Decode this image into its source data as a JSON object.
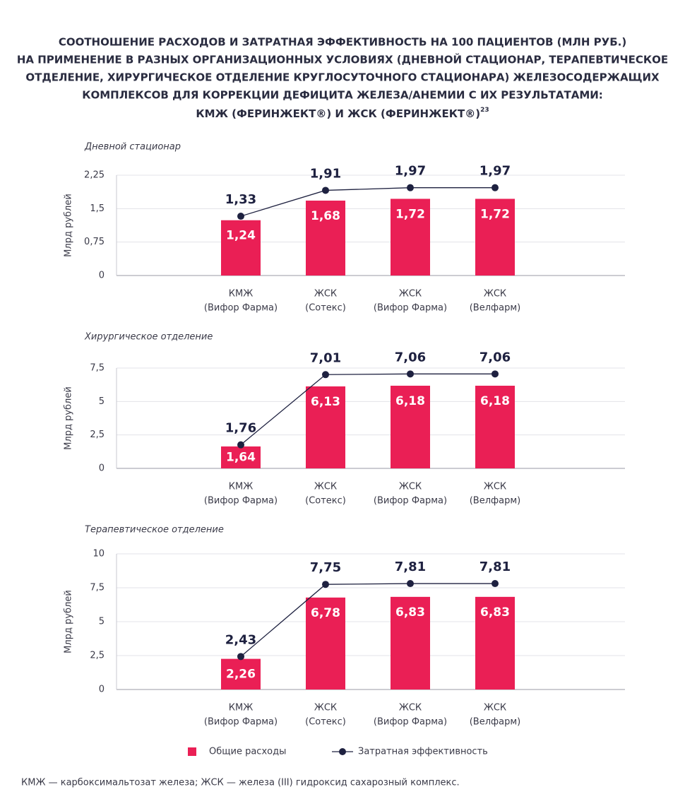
{
  "title": [
    "СООТНОШЕНИЕ РАСХОДОВ И ЗАТРАТНАЯ ЭФФЕКТИВНОСТЬ НА 100 ПАЦИЕНТОВ (МЛН РУБ.)",
    "НА ПРИМЕНЕНИЕ В РАЗНЫХ ОРГАНИЗАЦИОННЫХ УСЛОВИЯХ (ДНЕВНОЙ СТАЦИОНАР, ТЕРАПЕВТИЧЕСКОЕ",
    "ОТДЕЛЕНИЕ, ХИРУРГИЧЕСКОЕ ОТДЕЛЕНИЕ КРУГЛОСУТОЧНОГО СТАЦИОНАРА) ЖЕЛЕЗОСОДЕРЖАЩИХ",
    "КОМПЛЕКСОВ ДЛЯ КОРРЕКЦИИ ДЕФИЦИТА ЖЕЛЕЗА/АНЕМИИ С ИХ РЕЗУЛЬТАТАМИ:",
    "КМЖ (ФЕРИНЖЕКТ®) И ЖСК (ФЕРИНЖЕКТ®)"
  ],
  "title_ref": "23",
  "legend": [
    {
      "name": "Общие расходы",
      "color": "#ea1f55",
      "type": "bar"
    },
    {
      "name": "Затратная эффективность",
      "color": "#1e2140",
      "type": "line"
    }
  ],
  "footnote": "КМЖ — карбоксимальтозат железа; ЖСК — железа (III) гидроксид сахарозный комплекс.",
  "chart_data": [
    {
      "type": "bar",
      "subtitle": "Дневной стационар",
      "y_label": "Млрд рублей",
      "categories": [
        null,
        [
          "КМЖ",
          "(Вифор Фарма)"
        ],
        [
          "ЖСК",
          "(Сотекс)"
        ],
        [
          "ЖСК",
          "(Вифор Фарма)"
        ],
        [
          "ЖСК",
          "(Велфарм)"
        ],
        null
      ],
      "series": [
        {
          "values": [
            null,
            1.24,
            1.68,
            1.72,
            1.72,
            null
          ],
          "value_labels": [
            null,
            "1,24",
            "1,68",
            "1,72",
            "1,72",
            null
          ]
        },
        {
          "values": [
            null,
            1.33,
            1.91,
            1.97,
            1.97,
            null
          ],
          "value_labels": [
            null,
            "1,33",
            "1,91",
            "1,97",
            "1,97",
            null
          ]
        }
      ],
      "ylim": [
        0,
        2.25
      ],
      "yticks": [
        0,
        {
          "value": 0.75,
          "label": "0,75"
        },
        {
          "value": 1.5,
          "label": "1,5"
        },
        {
          "value": 2.25,
          "label": "2,25"
        }
      ],
      "grid": true
    },
    {
      "type": "bar",
      "subtitle": "Хирургическое отделение",
      "y_label": "Млрд рублей",
      "categories": [
        null,
        [
          "КМЖ",
          "(Вифор Фарма)"
        ],
        [
          "ЖСК",
          "(Сотекс)"
        ],
        [
          "ЖСК",
          "(Вифор Фарма)"
        ],
        [
          "ЖСК",
          "(Велфарм)"
        ],
        null
      ],
      "series": [
        {
          "values": [
            null,
            1.64,
            6.13,
            6.18,
            6.18,
            null
          ],
          "value_labels": [
            null,
            "1,64",
            "6,13",
            "6,18",
            "6,18",
            null
          ]
        },
        {
          "values": [
            null,
            1.76,
            7.01,
            7.06,
            7.06,
            null
          ],
          "value_labels": [
            null,
            "1,76",
            "7,01",
            "7,06",
            "7,06",
            null
          ]
        }
      ],
      "ylim": [
        0,
        7.5
      ],
      "yticks": [
        0,
        {
          "value": 2.5,
          "label": "2,5"
        },
        5,
        {
          "value": 7.5,
          "label": "7,5"
        }
      ],
      "grid": true
    },
    {
      "type": "bar",
      "subtitle": "Терапевтическое отделение",
      "y_label": "Млрд рублей",
      "categories": [
        null,
        [
          "КМЖ",
          "(Вифор Фарма)"
        ],
        [
          "ЖСК",
          "(Сотекс)"
        ],
        [
          "ЖСК",
          "(Вифор Фарма)"
        ],
        [
          "ЖСК",
          "(Велфарм)"
        ],
        null
      ],
      "series": [
        {
          "values": [
            null,
            2.26,
            6.78,
            6.83,
            6.83,
            null
          ],
          "value_labels": [
            null,
            "2,26",
            "6,78",
            "6,83",
            "6,83",
            null
          ]
        },
        {
          "values": [
            null,
            2.43,
            7.75,
            7.81,
            7.81,
            null
          ],
          "value_labels": [
            null,
            "2,43",
            "7,75",
            "7,81",
            "7,81",
            null
          ]
        }
      ],
      "ylim": [
        0,
        10
      ],
      "yticks": [
        0,
        {
          "value": 2.5,
          "label": "2,5"
        },
        5,
        {
          "value": 7.5,
          "label": "7,5"
        },
        10
      ],
      "grid": true
    }
  ]
}
